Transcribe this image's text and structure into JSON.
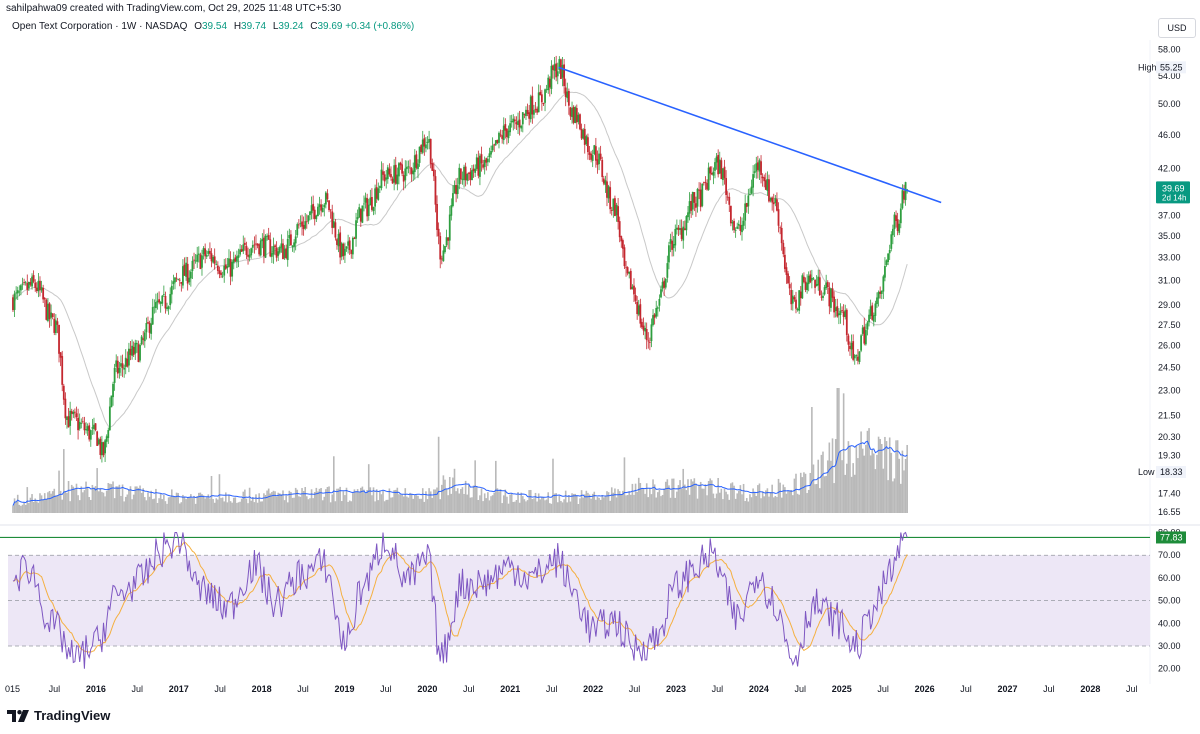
{
  "header": {
    "credit": "sahilpahwa09 created with TradingView.com, Oct 29, 2025 11:48 UTC+5:30",
    "symbol": "Open Text Corporation · 1W · NASDAQ",
    "open_label": "O",
    "open": "39.54",
    "high_label": "H",
    "high": "39.74",
    "low_label": "L",
    "low": "39.24",
    "close_label": "C",
    "close": "39.69",
    "change": "+0.34 (+0.86%)",
    "currency": "USD"
  },
  "brand": {
    "name": "TradingView"
  },
  "colors": {
    "up": "#089981",
    "down": "#f23645",
    "candle_up": "#2e9e3f",
    "candle_down": "#c4272f",
    "trendline": "#2962ff",
    "ma": "#c9c9c9",
    "volume": "#b9b9b9",
    "volume_ma": "#2962ff",
    "rsi_line": "#7e57c2",
    "rsi_ma": "#f5b041",
    "rsi_band": "#ede7f6",
    "rsi_level": "#1e8c3a"
  },
  "chart_data": [
    {
      "type": "candlestick",
      "price_axis_ticks": [
        "58.00",
        "54.00",
        "50.00",
        "46.00",
        "42.00",
        "37.00",
        "35.00",
        "33.00",
        "31.00",
        "29.00",
        "27.50",
        "26.00",
        "24.50",
        "23.00",
        "21.50",
        "20.30",
        "19.30",
        "17.40",
        "16.55"
      ],
      "scale": "log",
      "ylim": [
        16.2,
        59.5
      ],
      "time_axis_labels": [
        "015",
        "Jul",
        "2016",
        "Jul",
        "2017",
        "Jul",
        "2018",
        "Jul",
        "2019",
        "Jul",
        "2020",
        "Jul",
        "2021",
        "Jul",
        "2022",
        "Jul",
        "2023",
        "Jul",
        "2024",
        "Jul",
        "2025",
        "Jul",
        "2026",
        "Jul",
        "2027",
        "Jul",
        "2028",
        "Jul"
      ],
      "markers": {
        "high_label": "High",
        "high_value": "55.25",
        "low_label": "Low",
        "low_value": "18.33",
        "last_value": "39.69",
        "countdown": "2d 14h"
      },
      "trendline": {
        "from": {
          "date": "2021-08",
          "price": 55.25
        },
        "to": {
          "date": "2025-10",
          "price": 39.7
        }
      },
      "close_path": [
        [
          "2015-01",
          29.5
        ],
        [
          "2015-04",
          30.6
        ],
        [
          "2015-07",
          27.6
        ],
        [
          "2015-09",
          21.3
        ],
        [
          "2016-01",
          20.4
        ],
        [
          "2016-02",
          19.4
        ],
        [
          "2016-04",
          24.3
        ],
        [
          "2016-07",
          25.6
        ],
        [
          "2016-10",
          28.8
        ],
        [
          "2017-02",
          31.6
        ],
        [
          "2017-05",
          33.2
        ],
        [
          "2017-08",
          32.0
        ],
        [
          "2017-12",
          34.3
        ],
        [
          "2018-04",
          33.6
        ],
        [
          "2018-07",
          36.2
        ],
        [
          "2018-10",
          38.6
        ],
        [
          "2019-01",
          33.2
        ],
        [
          "2019-04",
          37.8
        ],
        [
          "2019-07",
          41.2
        ],
        [
          "2019-10",
          41.6
        ],
        [
          "2020-01",
          45.5
        ],
        [
          "2020-03",
          33.5
        ],
        [
          "2020-06",
          41.2
        ],
        [
          "2020-09",
          42.3
        ],
        [
          "2021-01",
          46.9
        ],
        [
          "2021-05",
          50.3
        ],
        [
          "2021-08",
          55.25
        ],
        [
          "2021-10",
          48.9
        ],
        [
          "2022-01",
          44.0
        ],
        [
          "2022-04",
          38.0
        ],
        [
          "2022-06",
          31.0
        ],
        [
          "2022-09",
          26.5
        ],
        [
          "2022-10",
          28.5
        ],
        [
          "2023-01",
          35.0
        ],
        [
          "2023-04",
          38.6
        ],
        [
          "2023-07",
          42.4
        ],
        [
          "2023-10",
          35.4
        ],
        [
          "2024-01",
          42.4
        ],
        [
          "2024-03",
          38.6
        ],
        [
          "2024-06",
          28.9
        ],
        [
          "2024-08",
          31.2
        ],
        [
          "2024-10",
          30.5
        ],
        [
          "2025-01",
          28.4
        ],
        [
          "2025-03",
          24.8
        ],
        [
          "2025-04",
          26.8
        ],
        [
          "2025-06",
          29.1
        ],
        [
          "2025-09",
          36.3
        ],
        [
          "2025-10",
          39.69
        ]
      ]
    },
    {
      "type": "bar",
      "series": [
        {
          "name": "",
          "values": "weekly volume (unlabelled)"
        }
      ],
      "volume_path": [
        [
          "2015-01",
          0.1
        ],
        [
          "2016-01",
          0.18
        ],
        [
          "2017-01",
          0.13
        ],
        [
          "2018-01",
          0.14
        ],
        [
          "2019-01",
          0.15
        ],
        [
          "2020-01",
          0.14
        ],
        [
          "2020-04",
          0.22
        ],
        [
          "2021-01",
          0.13
        ],
        [
          "2022-01",
          0.13
        ],
        [
          "2022-09",
          0.2
        ],
        [
          "2023-06",
          0.2
        ],
        [
          "2024-01",
          0.16
        ],
        [
          "2024-06",
          0.22
        ],
        [
          "2025-03",
          0.5
        ],
        [
          "2025-08",
          0.46
        ],
        [
          "2025-10",
          0.38
        ]
      ]
    },
    {
      "type": "line",
      "axis_ticks": [
        "80.00",
        "70.00",
        "60.00",
        "50.00",
        "40.00",
        "30.00",
        "20.00"
      ],
      "ylim": [
        15,
        82
      ],
      "levels": [
        70,
        50,
        30
      ],
      "last_value": "77.83",
      "rsi_path": [
        [
          "2015-01",
          58
        ],
        [
          "2015-03",
          65
        ],
        [
          "2015-07",
          38
        ],
        [
          "2015-10",
          24
        ],
        [
          "2016-01",
          31
        ],
        [
          "2016-04",
          52
        ],
        [
          "2016-07",
          58
        ],
        [
          "2016-11",
          73
        ],
        [
          "2017-01",
          78
        ],
        [
          "2017-04",
          55
        ],
        [
          "2017-08",
          47
        ],
        [
          "2017-12",
          65
        ],
        [
          "2018-03",
          49
        ],
        [
          "2018-07",
          62
        ],
        [
          "2018-10",
          66
        ],
        [
          "2019-01",
          32
        ],
        [
          "2019-04",
          58
        ],
        [
          "2019-07",
          77
        ],
        [
          "2019-10",
          58
        ],
        [
          "2020-01",
          68
        ],
        [
          "2020-03",
          25
        ],
        [
          "2020-06",
          57
        ],
        [
          "2020-09",
          58
        ],
        [
          "2021-01",
          65
        ],
        [
          "2021-04",
          60
        ],
        [
          "2021-08",
          68
        ],
        [
          "2021-10",
          54
        ],
        [
          "2022-01",
          37
        ],
        [
          "2022-04",
          41
        ],
        [
          "2022-07",
          29
        ],
        [
          "2022-10",
          33
        ],
        [
          "2023-01",
          56
        ],
        [
          "2023-04",
          65
        ],
        [
          "2023-06",
          70
        ],
        [
          "2023-10",
          42
        ],
        [
          "2024-01",
          63
        ],
        [
          "2024-03",
          50
        ],
        [
          "2024-06",
          25
        ],
        [
          "2024-09",
          48
        ],
        [
          "2024-12",
          42
        ],
        [
          "2025-03",
          30
        ],
        [
          "2025-06",
          48
        ],
        [
          "2025-08",
          62
        ],
        [
          "2025-10",
          77.83
        ]
      ]
    }
  ]
}
